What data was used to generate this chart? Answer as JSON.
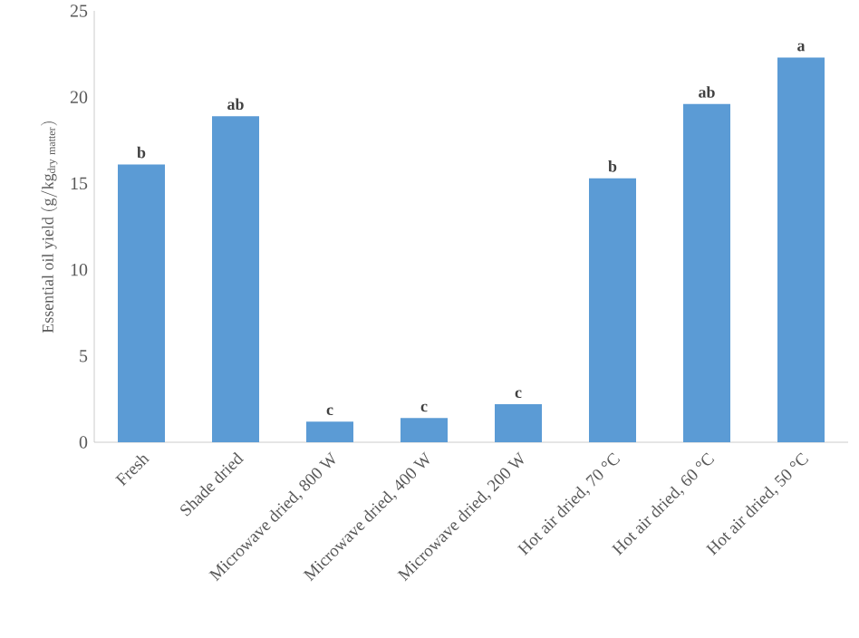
{
  "chart_data": {
    "type": "bar",
    "ylabel": "\\mathrm{Essential\\ oil\\ yield\\ (g/kg_{dry\\ matter})}",
    "categories": [
      "Fresh",
      "Shade dried",
      "Microwave dried, 800 W",
      "Microwave dried, 400 W",
      "Microwave dried, 200 W",
      "Hot air dried, 70 °C",
      "Hot air dried, 60 °C",
      "Hot air dried, 50 °C"
    ],
    "values": [
      16.1,
      18.9,
      1.2,
      1.4,
      2.2,
      15.3,
      19.6,
      22.3
    ],
    "color": "#5b9bd5",
    "ylim": [
      0,
      25
    ],
    "yticks": [
      0,
      5,
      10,
      15,
      20,
      25
    ],
    "annotations": [
      "b",
      "ab",
      "c",
      "c",
      "c",
      "b",
      "ab",
      "a"
    ]
  }
}
